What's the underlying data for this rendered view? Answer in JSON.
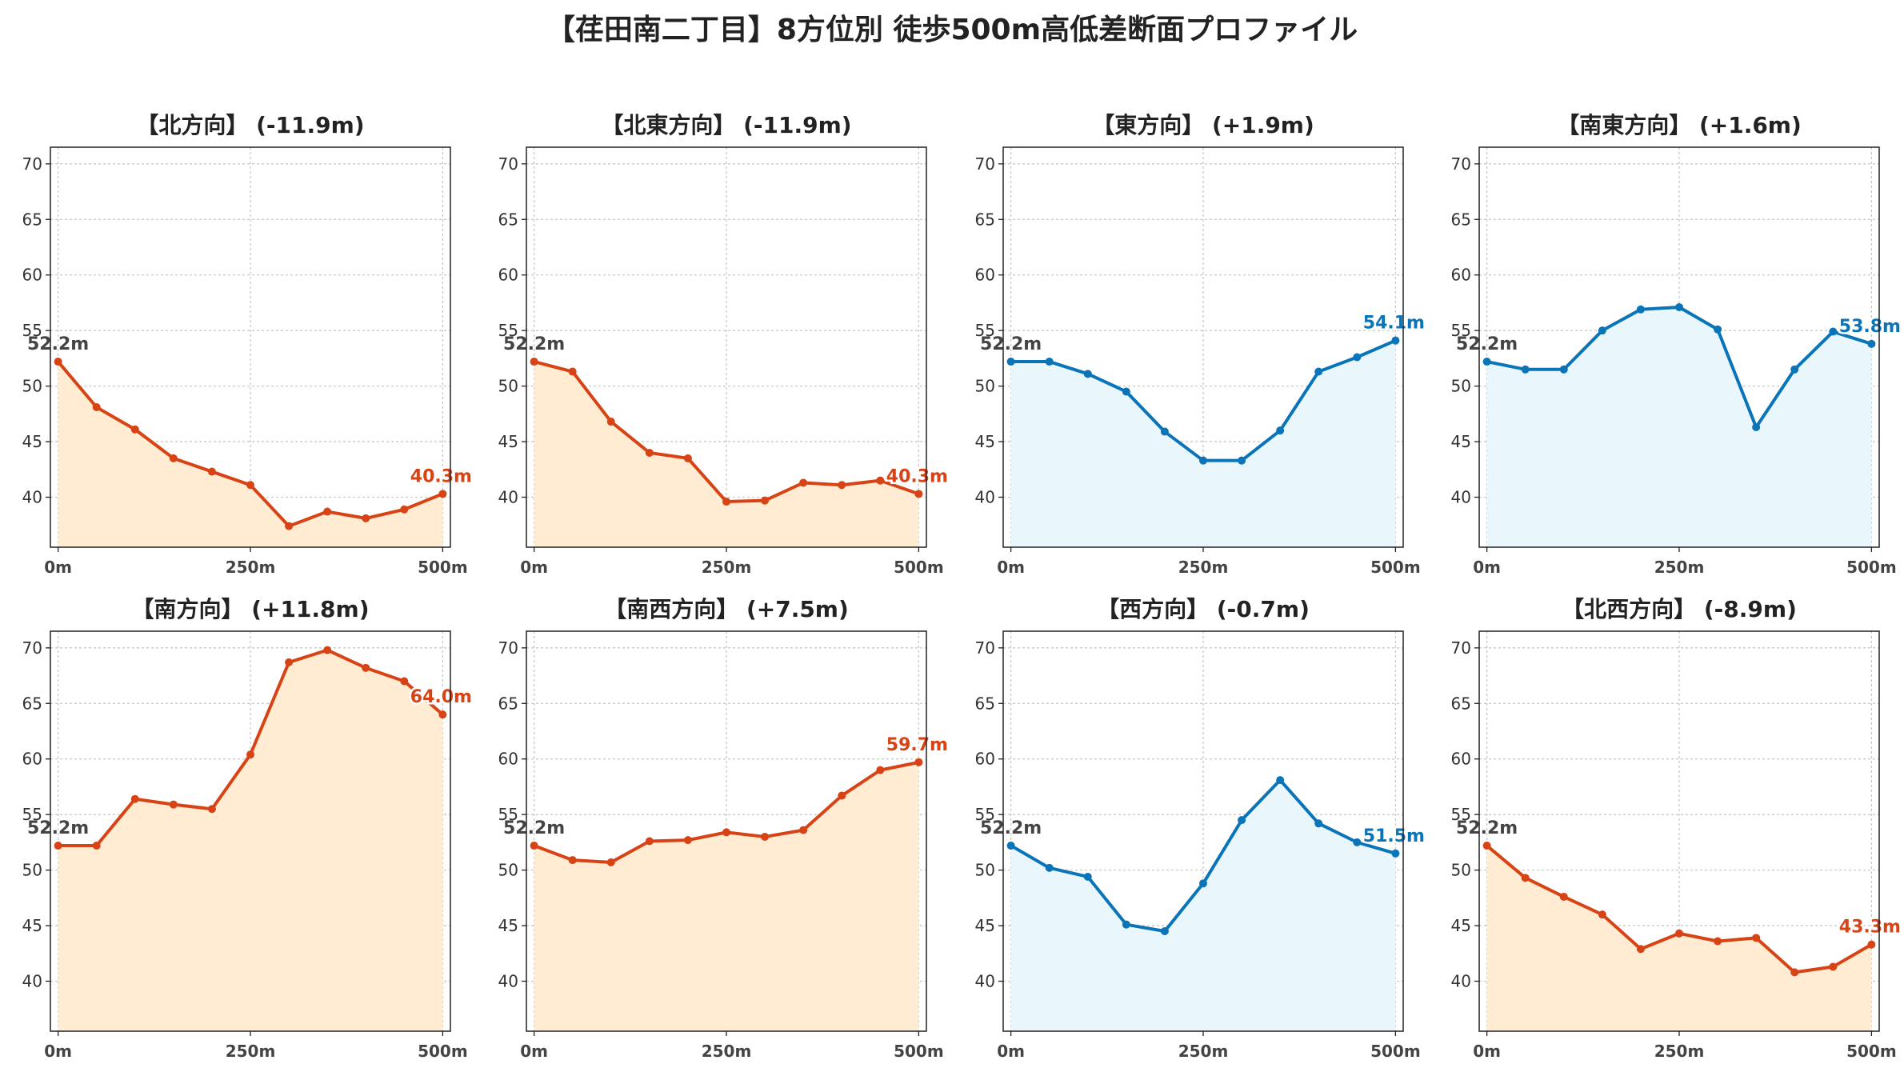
{
  "title": "【荏田南二丁目】8方位別 徒歩500m高低差断面プロファイル",
  "colors": {
    "descend_line": "#d84315",
    "descend_fill": "#ffecd2",
    "ascend_line": "#0a74b8",
    "ascend_fill": "#e9f6fc",
    "start_label": "#444444",
    "grid": "#c8c8c8"
  },
  "chart_data": [
    {
      "type": "line",
      "title": "【北方向】 (-11.9m)",
      "style": "descend",
      "x": [
        0,
        50,
        100,
        150,
        200,
        250,
        300,
        350,
        400,
        450,
        500
      ],
      "y": [
        52.2,
        48.1,
        46.1,
        43.5,
        42.3,
        41.1,
        37.4,
        38.7,
        38.1,
        38.9,
        40.3
      ],
      "start_label": "52.2m",
      "end_label": "40.3m",
      "xticks": [
        0,
        250,
        500
      ],
      "xtick_labels": [
        "0m",
        "250m",
        "500m"
      ],
      "yticks": [
        40,
        45,
        50,
        55,
        60,
        65,
        70
      ],
      "ylim": [
        35.5,
        71.5
      ],
      "grid": true
    },
    {
      "type": "line",
      "title": "【北東方向】 (-11.9m)",
      "style": "descend",
      "x": [
        0,
        50,
        100,
        150,
        200,
        250,
        300,
        350,
        400,
        450,
        500
      ],
      "y": [
        52.2,
        51.3,
        46.8,
        44.0,
        43.5,
        39.6,
        39.7,
        41.3,
        41.1,
        41.5,
        40.3
      ],
      "start_label": "52.2m",
      "end_label": "40.3m",
      "xticks": [
        0,
        250,
        500
      ],
      "xtick_labels": [
        "0m",
        "250m",
        "500m"
      ],
      "yticks": [
        40,
        45,
        50,
        55,
        60,
        65,
        70
      ],
      "ylim": [
        35.5,
        71.5
      ],
      "grid": true
    },
    {
      "type": "line",
      "title": "【東方向】 (+1.9m)",
      "style": "ascend",
      "x": [
        0,
        50,
        100,
        150,
        200,
        250,
        300,
        350,
        400,
        450,
        500
      ],
      "y": [
        52.2,
        52.2,
        51.1,
        49.5,
        45.9,
        43.3,
        43.3,
        46.0,
        51.3,
        52.6,
        54.1
      ],
      "start_label": "52.2m",
      "end_label": "54.1m",
      "xticks": [
        0,
        250,
        500
      ],
      "xtick_labels": [
        "0m",
        "250m",
        "500m"
      ],
      "yticks": [
        40,
        45,
        50,
        55,
        60,
        65,
        70
      ],
      "ylim": [
        35.5,
        71.5
      ],
      "grid": true
    },
    {
      "type": "line",
      "title": "【南東方向】 (+1.6m)",
      "style": "ascend",
      "x": [
        0,
        50,
        100,
        150,
        200,
        250,
        300,
        350,
        400,
        450,
        500
      ],
      "y": [
        52.2,
        51.5,
        51.5,
        55.0,
        56.9,
        57.1,
        55.1,
        46.3,
        51.5,
        54.9,
        53.8
      ],
      "start_label": "52.2m",
      "end_label": "53.8m",
      "xticks": [
        0,
        250,
        500
      ],
      "xtick_labels": [
        "0m",
        "250m",
        "500m"
      ],
      "yticks": [
        40,
        45,
        50,
        55,
        60,
        65,
        70
      ],
      "ylim": [
        35.5,
        71.5
      ],
      "grid": true
    },
    {
      "type": "line",
      "title": "【南方向】 (+11.8m)",
      "style": "descend",
      "x": [
        0,
        50,
        100,
        150,
        200,
        250,
        300,
        350,
        400,
        450,
        500
      ],
      "y": [
        52.2,
        52.2,
        56.4,
        55.9,
        55.5,
        60.4,
        68.7,
        69.8,
        68.2,
        67.0,
        64.0
      ],
      "start_label": "52.2m",
      "end_label": "64.0m",
      "xticks": [
        0,
        250,
        500
      ],
      "xtick_labels": [
        "0m",
        "250m",
        "500m"
      ],
      "yticks": [
        40,
        45,
        50,
        55,
        60,
        65,
        70
      ],
      "ylim": [
        35.5,
        71.5
      ],
      "grid": true
    },
    {
      "type": "line",
      "title": "【南西方向】 (+7.5m)",
      "style": "descend",
      "x": [
        0,
        50,
        100,
        150,
        200,
        250,
        300,
        350,
        400,
        450,
        500
      ],
      "y": [
        52.2,
        50.9,
        50.7,
        52.6,
        52.7,
        53.4,
        53.0,
        53.6,
        56.7,
        59.0,
        59.7
      ],
      "start_label": "52.2m",
      "end_label": "59.7m",
      "xticks": [
        0,
        250,
        500
      ],
      "xtick_labels": [
        "0m",
        "250m",
        "500m"
      ],
      "yticks": [
        40,
        45,
        50,
        55,
        60,
        65,
        70
      ],
      "ylim": [
        35.5,
        71.5
      ],
      "grid": true
    },
    {
      "type": "line",
      "title": "【西方向】 (-0.7m)",
      "style": "ascend",
      "x": [
        0,
        50,
        100,
        150,
        200,
        250,
        300,
        350,
        400,
        450,
        500
      ],
      "y": [
        52.2,
        50.2,
        49.4,
        45.1,
        44.5,
        48.8,
        54.5,
        58.1,
        54.2,
        52.5,
        51.5
      ],
      "start_label": "52.2m",
      "end_label": "51.5m",
      "xticks": [
        0,
        250,
        500
      ],
      "xtick_labels": [
        "0m",
        "250m",
        "500m"
      ],
      "yticks": [
        40,
        45,
        50,
        55,
        60,
        65,
        70
      ],
      "ylim": [
        35.5,
        71.5
      ],
      "grid": true
    },
    {
      "type": "line",
      "title": "【北西方向】 (-8.9m)",
      "style": "descend",
      "x": [
        0,
        50,
        100,
        150,
        200,
        250,
        300,
        350,
        400,
        450,
        500
      ],
      "y": [
        52.2,
        49.3,
        47.6,
        46.0,
        42.9,
        44.3,
        43.6,
        43.9,
        40.8,
        41.3,
        43.3
      ],
      "start_label": "52.2m",
      "end_label": "43.3m",
      "xticks": [
        0,
        250,
        500
      ],
      "xtick_labels": [
        "0m",
        "250m",
        "500m"
      ],
      "yticks": [
        40,
        45,
        50,
        55,
        60,
        65,
        70
      ],
      "ylim": [
        35.5,
        71.5
      ],
      "grid": true
    }
  ]
}
